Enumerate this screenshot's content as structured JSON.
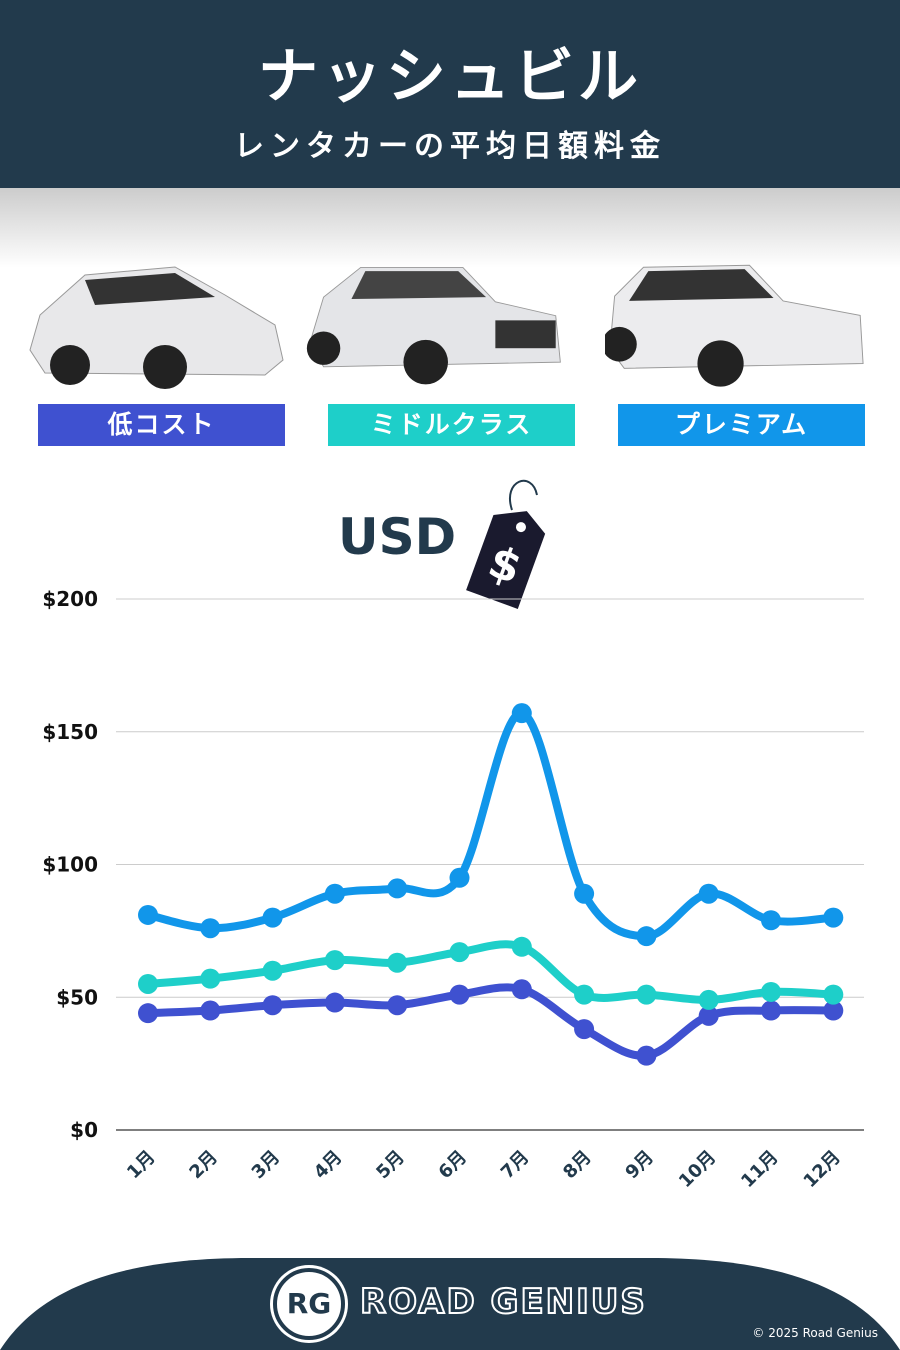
{
  "header": {
    "title": "ナッシュビル",
    "subtitle": "レンタカーの平均日額料金"
  },
  "categories": [
    {
      "label": "低コスト",
      "color": "#3f51d0"
    },
    {
      "label": "ミドルクラス",
      "color": "#1ecfc9"
    },
    {
      "label": "プレミアム",
      "color": "#1196ea"
    }
  ],
  "currency": "USD",
  "currency_symbol": "$",
  "chart_data": {
    "type": "line",
    "categories": [
      "1月",
      "2月",
      "3月",
      "4月",
      "5月",
      "6月",
      "7月",
      "8月",
      "9月",
      "10月",
      "11月",
      "12月"
    ],
    "ylim": [
      0,
      200
    ],
    "yticks": [
      0,
      50,
      100,
      150,
      200
    ],
    "ytick_labels": [
      "$0",
      "$50",
      "$100",
      "$150",
      "$200"
    ],
    "grid": true,
    "series": [
      {
        "name": "低コスト",
        "color": "#3f51d0",
        "values": [
          44,
          45,
          47,
          48,
          47,
          51,
          53,
          38,
          28,
          43,
          45,
          45
        ]
      },
      {
        "name": "ミドルクラス",
        "color": "#1ecfc9",
        "values": [
          55,
          57,
          60,
          64,
          63,
          67,
          69,
          51,
          51,
          49,
          52,
          51
        ]
      },
      {
        "name": "プレミアム",
        "color": "#1196ea",
        "values": [
          81,
          76,
          80,
          89,
          91,
          95,
          157,
          89,
          73,
          89,
          79,
          80
        ]
      }
    ]
  },
  "footer": {
    "logo": "RG",
    "brand": "ROAD GENIUS",
    "copyright": "© 2025 Road Genius"
  }
}
